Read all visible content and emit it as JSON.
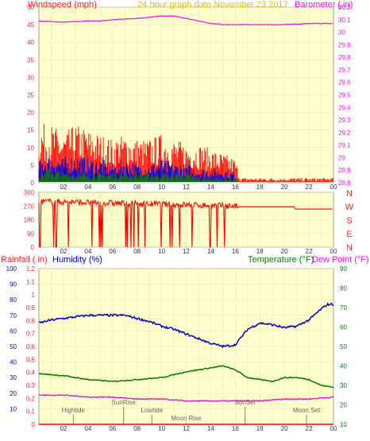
{
  "colors": {
    "plot_bg": "#ffffcc",
    "grid": "#e6e6b8",
    "axis_label_red": "#ff2020",
    "axis_label_pink": "#ff00ff",
    "date_gold": "#e0c000",
    "blue": "#0000cc",
    "green": "#007a00",
    "magenta": "#e020e0",
    "red": "#ff0000",
    "annot": "#666666"
  },
  "chart_data": [
    {
      "type": "line",
      "title": "24 hour graph date  November 23 2017",
      "ylabel_left": "Windspeed (mph)",
      "ylabel_right": "Barometer (.in)",
      "x_ticks": [
        "02",
        "04",
        "06",
        "08",
        "10",
        "12",
        "14",
        "16",
        "18",
        "20",
        "22",
        "00"
      ],
      "ylim_left": [
        0,
        50
      ],
      "yticks_left": [
        "50",
        "45",
        "40",
        "35",
        "30",
        "25",
        "20",
        "15",
        "10",
        "5",
        "0"
      ],
      "ylim_right": [
        28.8,
        30.2
      ],
      "yticks_right": [
        "30.2",
        "30.1",
        "30",
        "29.9",
        "29.8",
        "29.7",
        "29.6",
        "29.5",
        "29.4",
        "29.3",
        "29.2",
        "29.1",
        "29",
        "28.9",
        "28.8"
      ],
      "series": [
        {
          "axis": "right",
          "color": "magenta",
          "x": [
            0,
            2,
            4,
            5,
            6,
            8,
            9,
            10,
            11,
            12,
            13,
            14,
            15,
            16,
            18,
            20,
            22,
            23,
            24
          ],
          "y": [
            30.09,
            30.08,
            30.09,
            30.09,
            30.1,
            30.11,
            30.12,
            30.13,
            30.13,
            30.11,
            30.09,
            30.07,
            30.06,
            30.06,
            30.06,
            30.06,
            30.07,
            30.07,
            30.07
          ]
        },
        {
          "axis": "left",
          "color": "red",
          "style": "band",
          "x": [
            0,
            1,
            2,
            3,
            4,
            5,
            6,
            7,
            8,
            9,
            10,
            11,
            12,
            13,
            14,
            15,
            16,
            16.4,
            24
          ],
          "y": [
            12,
            12,
            10,
            12,
            11,
            10,
            9,
            10,
            9,
            9,
            10,
            9,
            8,
            8,
            7,
            6,
            5,
            1,
            1
          ]
        },
        {
          "axis": "left",
          "color": "blue",
          "style": "band",
          "x": [
            0,
            1,
            2,
            3,
            4,
            5,
            6,
            7,
            8,
            9,
            10,
            11,
            12,
            13,
            14,
            15,
            16,
            16.3
          ],
          "y": [
            5,
            6,
            5,
            6,
            5,
            5,
            4,
            5,
            4,
            4,
            5,
            4,
            4,
            3,
            3,
            3,
            2,
            0
          ]
        },
        {
          "axis": "left",
          "color": "green",
          "style": "band",
          "x": [
            0,
            1,
            2,
            3,
            4,
            5,
            6,
            7,
            8,
            9,
            10,
            11,
            12,
            13,
            14,
            15,
            16,
            16.3
          ],
          "y": [
            2,
            3,
            2,
            2,
            2,
            2,
            2,
            2,
            2,
            2,
            2,
            2,
            2,
            1,
            1,
            1,
            1,
            0
          ]
        }
      ]
    },
    {
      "type": "line",
      "ylabel": "Wind Direction",
      "x_ticks": [
        "02",
        "04",
        "06",
        "08",
        "10",
        "12",
        "14",
        "16",
        "18",
        "20",
        "22",
        "00"
      ],
      "ylim": [
        0,
        360
      ],
      "yticks": [
        "360",
        "270",
        "180",
        "90",
        "0"
      ],
      "right_labels": [
        "N",
        "W",
        "S",
        "E",
        "N"
      ],
      "series": [
        {
          "color": "red",
          "x": [
            0,
            16.2,
            16.3,
            20.8,
            20.9,
            24
          ],
          "y": [
            300,
            270,
            265,
            265,
            250,
            250
          ]
        }
      ]
    },
    {
      "type": "line",
      "ylabel_left": "Rainfall (.in)",
      "ylabel_left2": "Humidity (%)",
      "ylabel_right": "Temperature (°F)",
      "ylabel_right2": "Dew Point (°F)",
      "x_ticks": [
        "02",
        "04",
        "06",
        "08",
        "10",
        "12",
        "14",
        "16",
        "18",
        "20",
        "22",
        "00"
      ],
      "ylim_rain": [
        0,
        1.2
      ],
      "yticks_rain": [
        "1.2",
        "1.1",
        "1",
        "0.9",
        "0.8",
        "0.7",
        "0.6",
        "0.5",
        "0.4",
        "0.3",
        "0.2",
        "0.1",
        "0"
      ],
      "ylim_humidity": [
        0,
        100
      ],
      "yticks_humidity": [
        "100",
        "90",
        "80",
        "70",
        "60",
        "50",
        "40",
        "30",
        "20",
        "10"
      ],
      "ylim_temp": [
        10,
        90
      ],
      "yticks_temp": [
        "90",
        "80",
        "70",
        "60",
        "50",
        "40",
        "30",
        "20",
        "10"
      ],
      "series": [
        {
          "name": "Humidity",
          "color": "blue",
          "axis": "humidity",
          "x": [
            0,
            1,
            2,
            3,
            4,
            5,
            6,
            7,
            8,
            9,
            10,
            11,
            12,
            13,
            14,
            15,
            16,
            17,
            18,
            19,
            20,
            21,
            22,
            23,
            23.5,
            24
          ],
          "y": [
            65,
            67,
            68,
            69,
            70,
            70,
            70,
            70,
            68,
            66,
            63,
            61,
            58,
            55,
            52,
            50,
            51,
            61,
            65,
            64,
            62,
            63,
            67,
            74,
            77,
            77
          ]
        },
        {
          "name": "Temperature",
          "color": "green",
          "axis": "temp",
          "x": [
            0,
            2,
            4,
            6,
            8,
            10,
            12,
            14,
            15,
            16,
            17,
            18,
            19,
            20,
            21,
            22,
            23,
            24
          ],
          "y": [
            36,
            35,
            33,
            32,
            33,
            34,
            37,
            39,
            40,
            38,
            34,
            33,
            32,
            34,
            34,
            33,
            30,
            29
          ]
        },
        {
          "name": "Dew Point",
          "color": "magenta",
          "axis": "temp",
          "x": [
            0,
            2,
            4,
            6,
            8,
            10,
            12,
            14,
            16,
            18,
            20,
            22,
            24
          ],
          "y": [
            25,
            25,
            24,
            24,
            23,
            23,
            22,
            22,
            22,
            22,
            23,
            23,
            24
          ]
        },
        {
          "name": "Rainfall",
          "color": "red",
          "axis": "rain",
          "x": [
            0,
            24
          ],
          "y": [
            0,
            0
          ]
        }
      ],
      "annotations": [
        {
          "label": "Hightide",
          "x": 2.8,
          "row": 1
        },
        {
          "label": "SunRise",
          "x": 6.9,
          "row": 0
        },
        {
          "label": "Lowtide",
          "x": 9.2,
          "row": 1
        },
        {
          "label": "Moon Rise",
          "x": 12.0,
          "row": 2
        },
        {
          "label": "SunSet",
          "x": 16.8,
          "row": 0
        },
        {
          "label": "Moon Set",
          "x": 21.8,
          "row": 1
        }
      ]
    }
  ]
}
